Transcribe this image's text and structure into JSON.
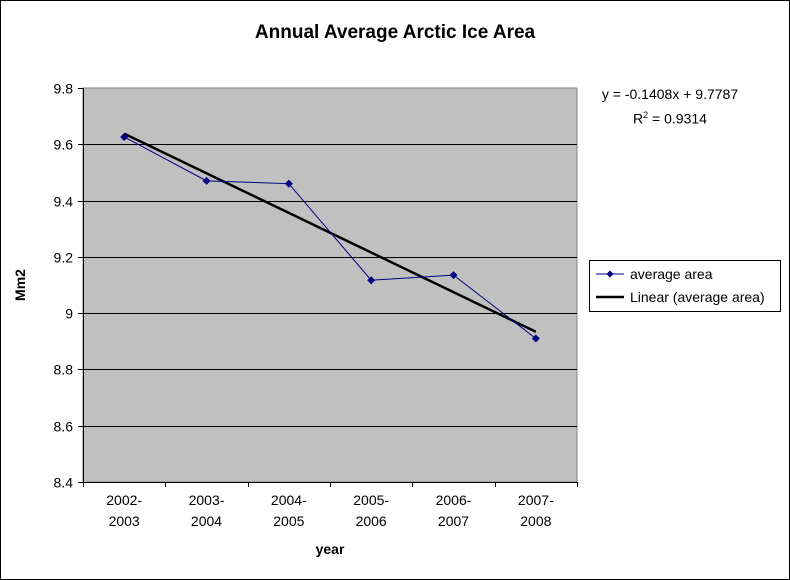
{
  "chart_data": {
    "type": "line",
    "title": "Annual Average Arctic Ice Area",
    "xlabel": "year",
    "ylabel": "Mm2",
    "categories": [
      [
        "2002-",
        "2003"
      ],
      [
        "2003-",
        "2004"
      ],
      [
        "2004-",
        "2005"
      ],
      [
        "2005-",
        "2006"
      ],
      [
        "2006-",
        "2007"
      ],
      [
        "2007-",
        "2008"
      ]
    ],
    "ylim": [
      8.4,
      9.8
    ],
    "yticks": [
      "9.8",
      "9.6",
      "9.4",
      "9.2",
      "9",
      "8.8",
      "8.6",
      "8.4"
    ],
    "ytick_values": [
      9.8,
      9.6,
      9.4,
      9.2,
      9.0,
      8.8,
      8.6,
      8.4
    ],
    "grid": true,
    "series": [
      {
        "name": "average area",
        "values": [
          9.626,
          9.47,
          9.46,
          9.117,
          9.135,
          8.91
        ],
        "color": "#000080"
      }
    ],
    "trendline": {
      "name": "Linear (average area)",
      "slope": -0.1408,
      "intercept": 9.7787,
      "equation": "y = -0.1408x + 9.7787",
      "r2_label": "R",
      "r2_sup": "2",
      "r2_value": " = 0.9314",
      "color": "#000000"
    },
    "legend_position": "right",
    "plot_background": "#c0c0c0"
  }
}
